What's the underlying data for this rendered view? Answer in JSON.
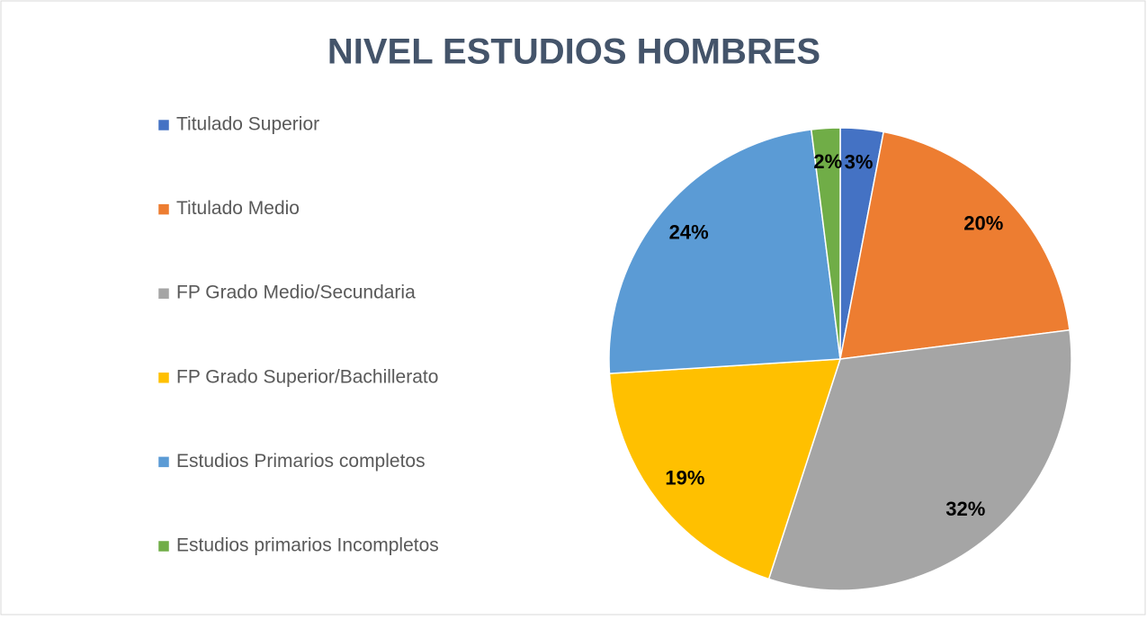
{
  "chart_data": {
    "type": "pie",
    "title": "NIVEL ESTUDIOS HOMBRES",
    "categories": [
      "Titulado Superior",
      "Titulado Medio",
      "FP Grado Medio/Secundaria",
      "FP Grado Superior/Bachillerato",
      "Estudios Primarios  completos",
      "Estudios primarios Incompletos"
    ],
    "values": [
      3,
      20,
      32,
      19,
      24,
      2
    ],
    "value_labels": [
      "3%",
      "20%",
      "32%",
      "19%",
      "24%",
      "2%"
    ],
    "colors": [
      "#4472c4",
      "#ed7d31",
      "#a5a5a5",
      "#ffc000",
      "#5b9bd5",
      "#70ad47"
    ],
    "legend": "left"
  }
}
